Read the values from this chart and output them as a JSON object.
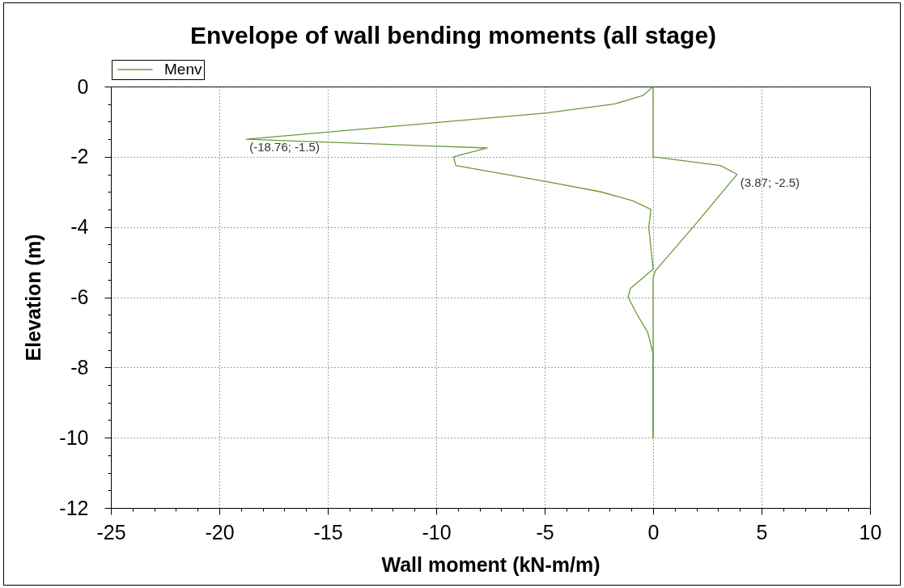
{
  "chart_data": {
    "type": "line",
    "orientation": "horizontal",
    "title": "Envelope of wall bending moments (all stage)",
    "xlabel": "Wall moment (kN-m/m)",
    "ylabel": "Elevation (m)",
    "series": [
      {
        "name": "Menv",
        "color": "#6a9a3a",
        "x": [
          0,
          -0.25,
          -0.5,
          -0.75,
          -1.0,
          -1.5,
          -1.75,
          -2.0,
          -2.25,
          -2.7,
          -3.0,
          -3.25,
          -3.5,
          -4.0,
          -5.2,
          -5.75,
          -6.0,
          -6.5,
          -7.0,
          -7.6,
          -10
        ],
        "values": [
          0,
          -0.45,
          -1.8,
          -4.9,
          -9.5,
          -18.76,
          -7.65,
          -9.2,
          -9.1,
          -5.0,
          -2.4,
          -0.95,
          -0.1,
          -0.2,
          0,
          -1.05,
          -1.15,
          -0.73,
          -0.25,
          0,
          0
        ]
      },
      {
        "color": "#6a9a3a",
        "x": [
          0,
          -2.0,
          -2.25,
          -2.5,
          -4.0,
          -5.25,
          -5.45,
          -10
        ],
        "values": [
          0,
          0,
          3.1,
          3.87,
          1.85,
          0.1,
          0,
          0
        ]
      }
    ],
    "xlim": [
      -25,
      10
    ],
    "xticks": [
      -25,
      {
        "value": -24,
        "label": null
      },
      {
        "value": -23,
        "label": null
      },
      {
        "value": -22,
        "label": null
      },
      {
        "value": -21,
        "label": null
      },
      -20,
      {
        "value": -19,
        "label": null
      },
      {
        "value": -18,
        "label": null
      },
      {
        "value": -17,
        "label": null
      },
      {
        "value": -16,
        "label": null
      },
      -15,
      {
        "value": -14,
        "label": null
      },
      {
        "value": -13,
        "label": null
      },
      {
        "value": -12,
        "label": null
      },
      {
        "value": -11,
        "label": null
      },
      -10,
      {
        "value": -9,
        "label": null
      },
      {
        "value": -8,
        "label": null
      },
      {
        "value": -7,
        "label": null
      },
      {
        "value": -6,
        "label": null
      },
      -5,
      {
        "value": -4,
        "label": null
      },
      {
        "value": -3,
        "label": null
      },
      {
        "value": -2,
        "label": null
      },
      {
        "value": -1,
        "label": null
      },
      0,
      {
        "value": 1,
        "label": null
      },
      {
        "value": 2,
        "label": null
      },
      {
        "value": 3,
        "label": null
      },
      {
        "value": 4,
        "label": null
      },
      5,
      {
        "value": 6,
        "label": null
      },
      {
        "value": 7,
        "label": null
      },
      {
        "value": 8,
        "label": null
      },
      {
        "value": 9,
        "label": null
      },
      10
    ],
    "ylim": [
      -12,
      0
    ],
    "yticks": [
      0,
      {
        "value": -0.5,
        "label": null
      },
      {
        "value": -1,
        "label": null
      },
      {
        "value": -1.5,
        "label": null
      },
      -2,
      {
        "value": -2.5,
        "label": null
      },
      {
        "value": -3,
        "label": null
      },
      {
        "value": -3.5,
        "label": null
      },
      -4,
      {
        "value": -4.5,
        "label": null
      },
      {
        "value": -5,
        "label": null
      },
      {
        "value": -5.5,
        "label": null
      },
      -6,
      {
        "value": -6.5,
        "label": null
      },
      {
        "value": -7,
        "label": null
      },
      {
        "value": -7.5,
        "label": null
      },
      -8,
      {
        "value": -8.5,
        "label": null
      },
      {
        "value": -9,
        "label": null
      },
      {
        "value": -9.5,
        "label": null
      },
      -10,
      {
        "value": -10.5,
        "label": null
      },
      {
        "value": -11,
        "label": null
      },
      {
        "value": -11.5,
        "label": null
      },
      -12
    ],
    "grid": true,
    "legend": "top left",
    "line_style": "solid",
    "annotations": [
      {
        "text": "(-18.76; -1.5)",
        "x": -18.76,
        "y": -1.5
      },
      {
        "text": "(3.87; -2.5)",
        "x": 3.87,
        "y": -2.5
      }
    ]
  }
}
